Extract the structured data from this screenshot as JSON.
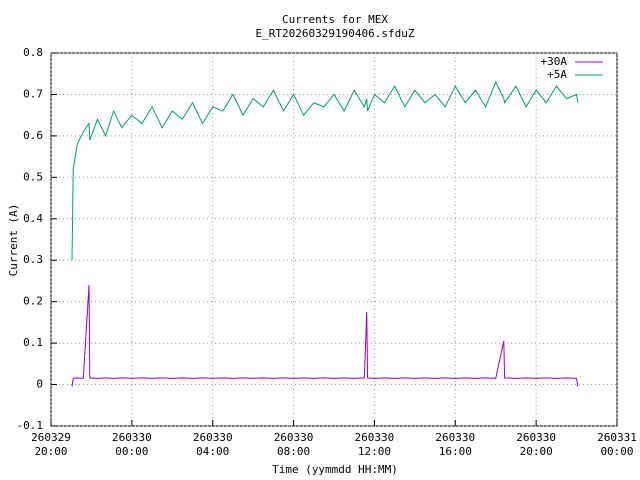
{
  "chart_data": {
    "type": "line",
    "title": "Currents for MEX",
    "subtitle": "E_RT20260329190406.sfduZ",
    "x_label": "Time (yymmdd HH:MM)",
    "y_label": "Current (A)",
    "x": [
      1.04,
      1.1,
      1.3,
      1.6,
      1.88,
      1.92,
      2.3,
      2.7,
      3.1,
      3.5,
      4,
      4.5,
      5,
      5.5,
      6,
      6.5,
      7,
      7.5,
      8,
      8.5,
      9,
      9.5,
      10,
      10.5,
      11,
      11.5,
      12,
      12.5,
      13,
      13.5,
      14,
      14.5,
      15,
      15.5,
      15.62,
      15.66,
      16,
      16.5,
      17,
      17.5,
      18,
      18.5,
      19,
      19.5,
      20,
      20.5,
      21,
      21.5,
      22,
      22.4,
      22.44,
      23,
      23.5,
      24,
      24.5,
      25,
      25.5,
      26,
      26.06
    ],
    "series": [
      {
        "name": "+30A",
        "color": "#9400d3",
        "values": [
          -0.005,
          0.015,
          0.016,
          0.015,
          0.24,
          0.016,
          0.015,
          0.016,
          0.015,
          0.016,
          0.015,
          0.016,
          0.015,
          0.016,
          0.015,
          0.016,
          0.015,
          0.016,
          0.015,
          0.016,
          0.015,
          0.016,
          0.015,
          0.016,
          0.015,
          0.016,
          0.015,
          0.016,
          0.015,
          0.016,
          0.015,
          0.016,
          0.015,
          0.016,
          0.175,
          0.016,
          0.015,
          0.016,
          0.015,
          0.016,
          0.015,
          0.016,
          0.015,
          0.016,
          0.015,
          0.016,
          0.015,
          0.016,
          0.015,
          0.105,
          0.016,
          0.015,
          0.016,
          0.015,
          0.016,
          0.015,
          0.016,
          0.015,
          -0.005
        ]
      },
      {
        "name": "+5A",
        "color": "#009e73",
        "values": [
          0.3,
          0.52,
          0.58,
          0.61,
          0.63,
          0.59,
          0.64,
          0.6,
          0.66,
          0.62,
          0.65,
          0.63,
          0.67,
          0.62,
          0.66,
          0.64,
          0.68,
          0.63,
          0.67,
          0.66,
          0.7,
          0.65,
          0.69,
          0.67,
          0.71,
          0.66,
          0.7,
          0.65,
          0.68,
          0.67,
          0.7,
          0.66,
          0.71,
          0.67,
          0.69,
          0.66,
          0.7,
          0.68,
          0.72,
          0.67,
          0.71,
          0.68,
          0.7,
          0.67,
          0.72,
          0.68,
          0.71,
          0.67,
          0.73,
          0.69,
          0.68,
          0.72,
          0.67,
          0.71,
          0.68,
          0.72,
          0.69,
          0.7,
          0.68
        ]
      }
    ],
    "xlim": [
      0,
      28
    ],
    "xticks": [
      {
        "value": 0,
        "label": "260329\n20:00"
      },
      {
        "value": 4,
        "label": "260330\n00:00"
      },
      {
        "value": 8,
        "label": "260330\n04:00"
      },
      {
        "value": 12,
        "label": "260330\n08:00"
      },
      {
        "value": 16,
        "label": "260330\n12:00"
      },
      {
        "value": 20,
        "label": "260330\n16:00"
      },
      {
        "value": 24,
        "label": "260330\n20:00"
      },
      {
        "value": 28,
        "label": "260331\n00:00"
      }
    ],
    "ylim": [
      -0.1,
      0.8
    ],
    "yticks": [
      -0.1,
      0,
      0.1,
      0.2,
      0.3,
      0.4,
      0.5,
      0.6,
      0.7,
      0.8
    ],
    "grid": true,
    "legend": "top-right"
  }
}
